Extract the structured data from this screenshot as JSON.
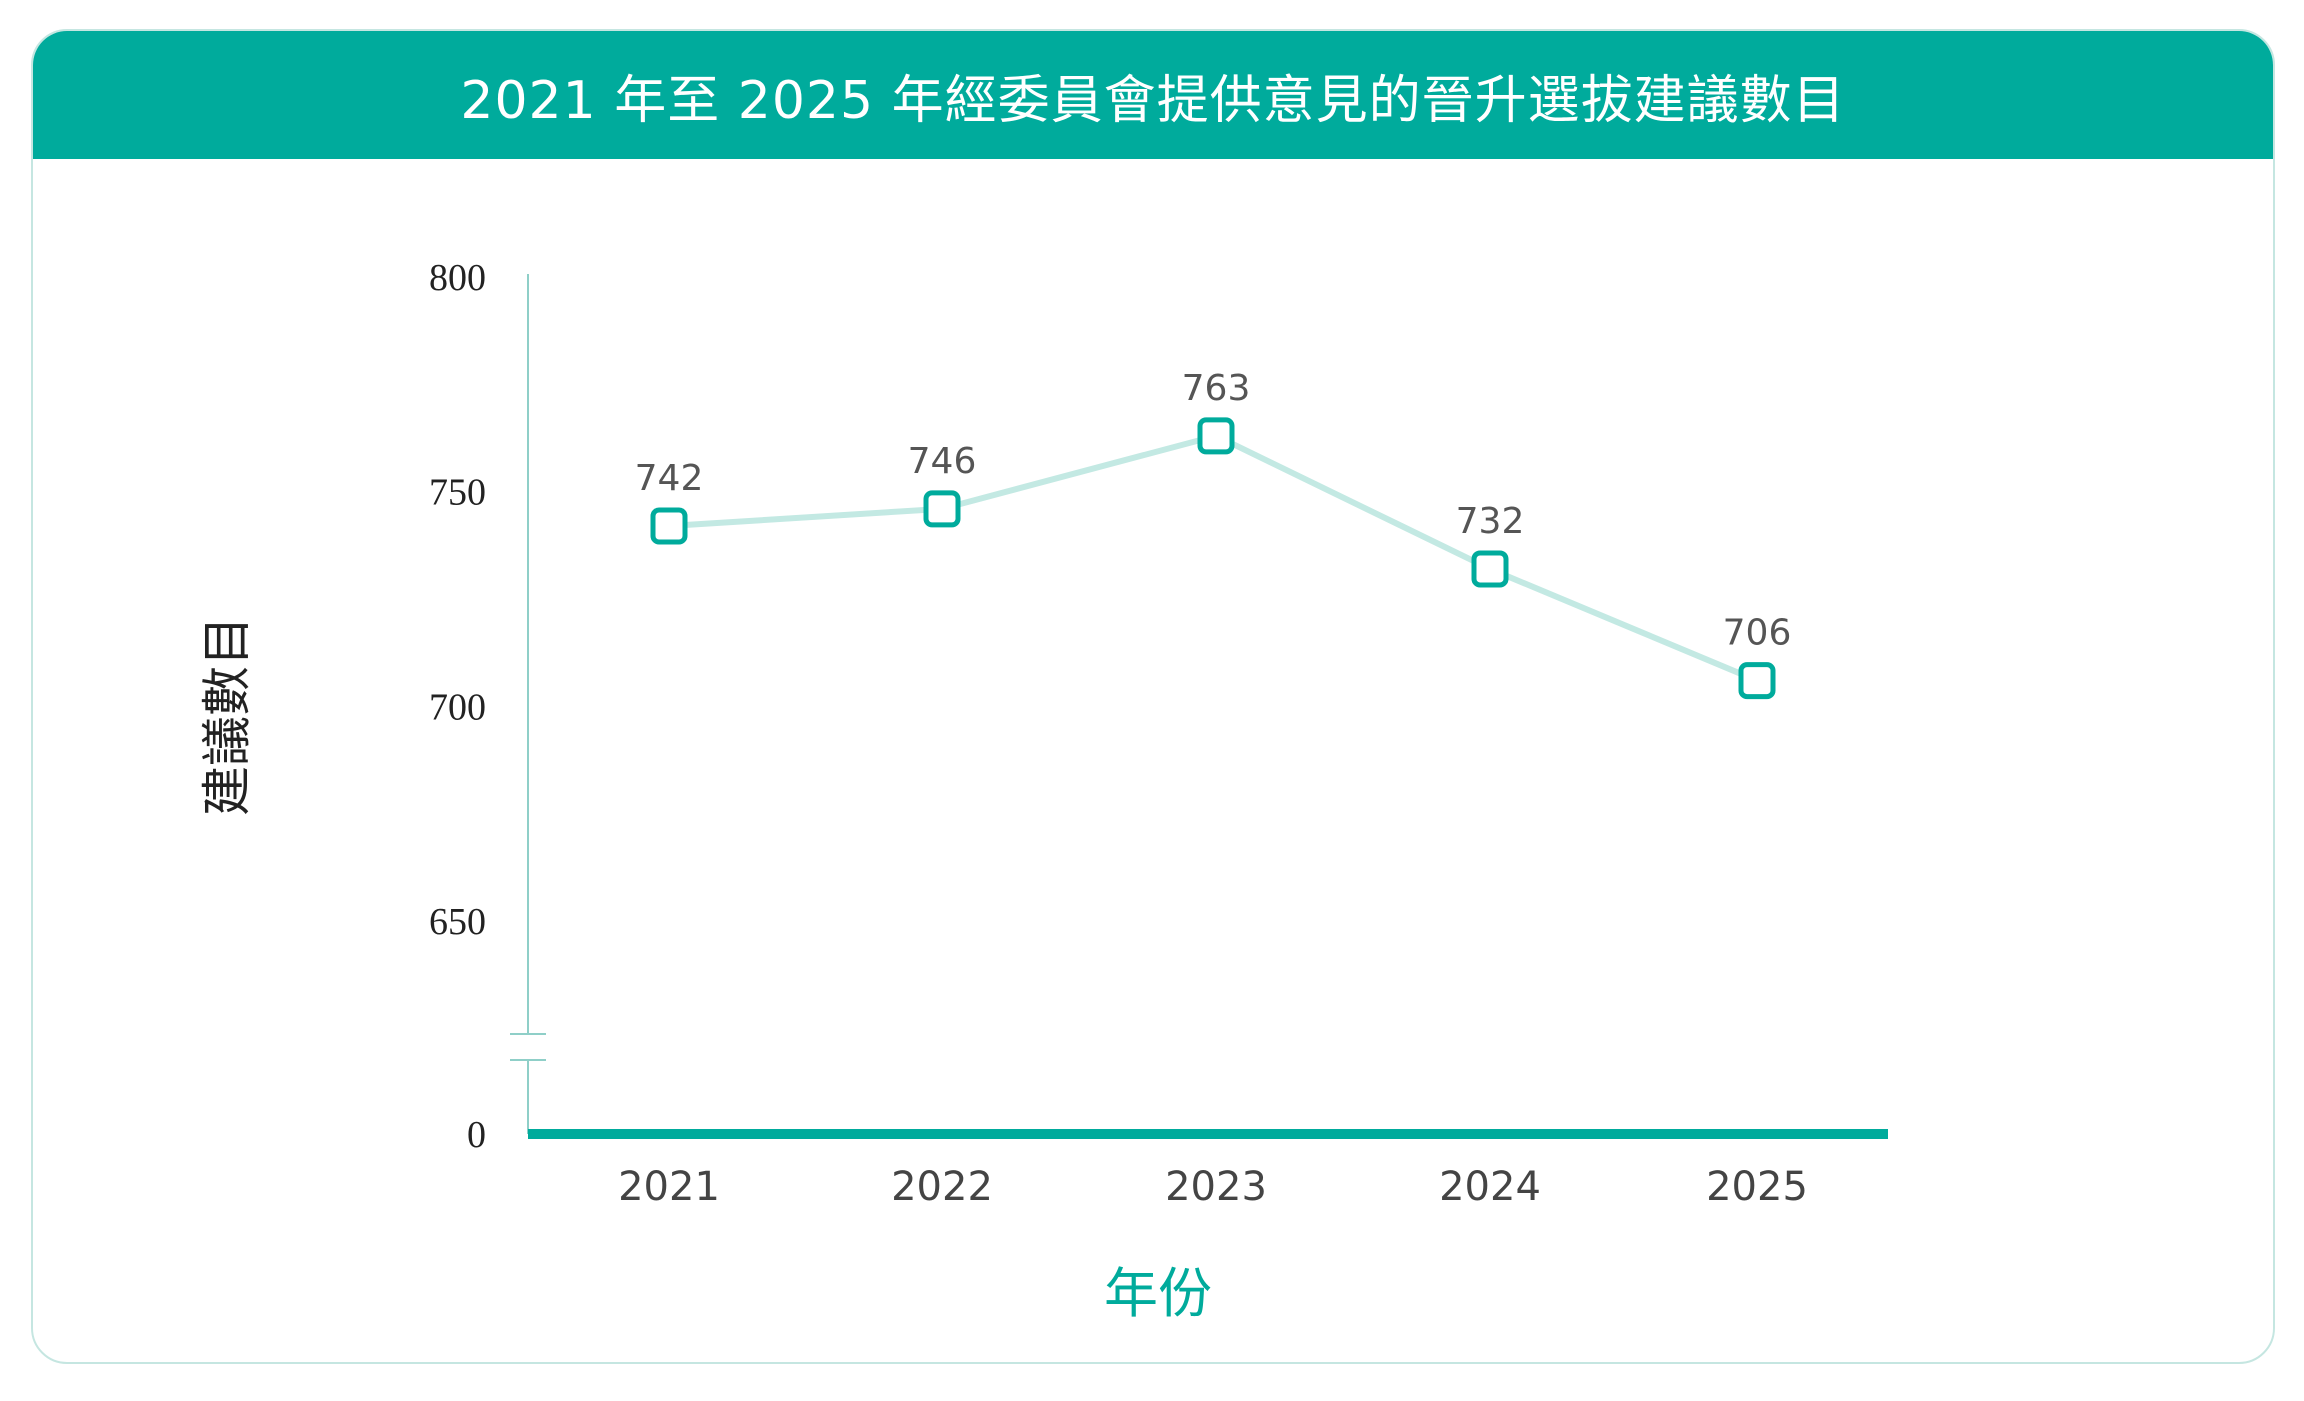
{
  "chart_data": {
    "type": "line",
    "title": "2021 年至 2025 年經委員會提供意見的晉升選拔建議數目",
    "xlabel": "年份",
    "ylabel": "建議數目",
    "categories": [
      "2021",
      "2022",
      "2023",
      "2024",
      "2025"
    ],
    "series": [
      {
        "values": [
          742,
          746,
          763,
          732,
          706
        ]
      }
    ],
    "ylim": [
      0,
      800
    ],
    "yticks": [
      800,
      750,
      700,
      650,
      0
    ],
    "axis_break": true,
    "grid": false,
    "highlight_category": "2025",
    "colors": {
      "accent": "#00ab9c",
      "line": "#c3e9e3",
      "marker_stroke": "#00ab9c",
      "axis": "#8fcfc8"
    }
  }
}
